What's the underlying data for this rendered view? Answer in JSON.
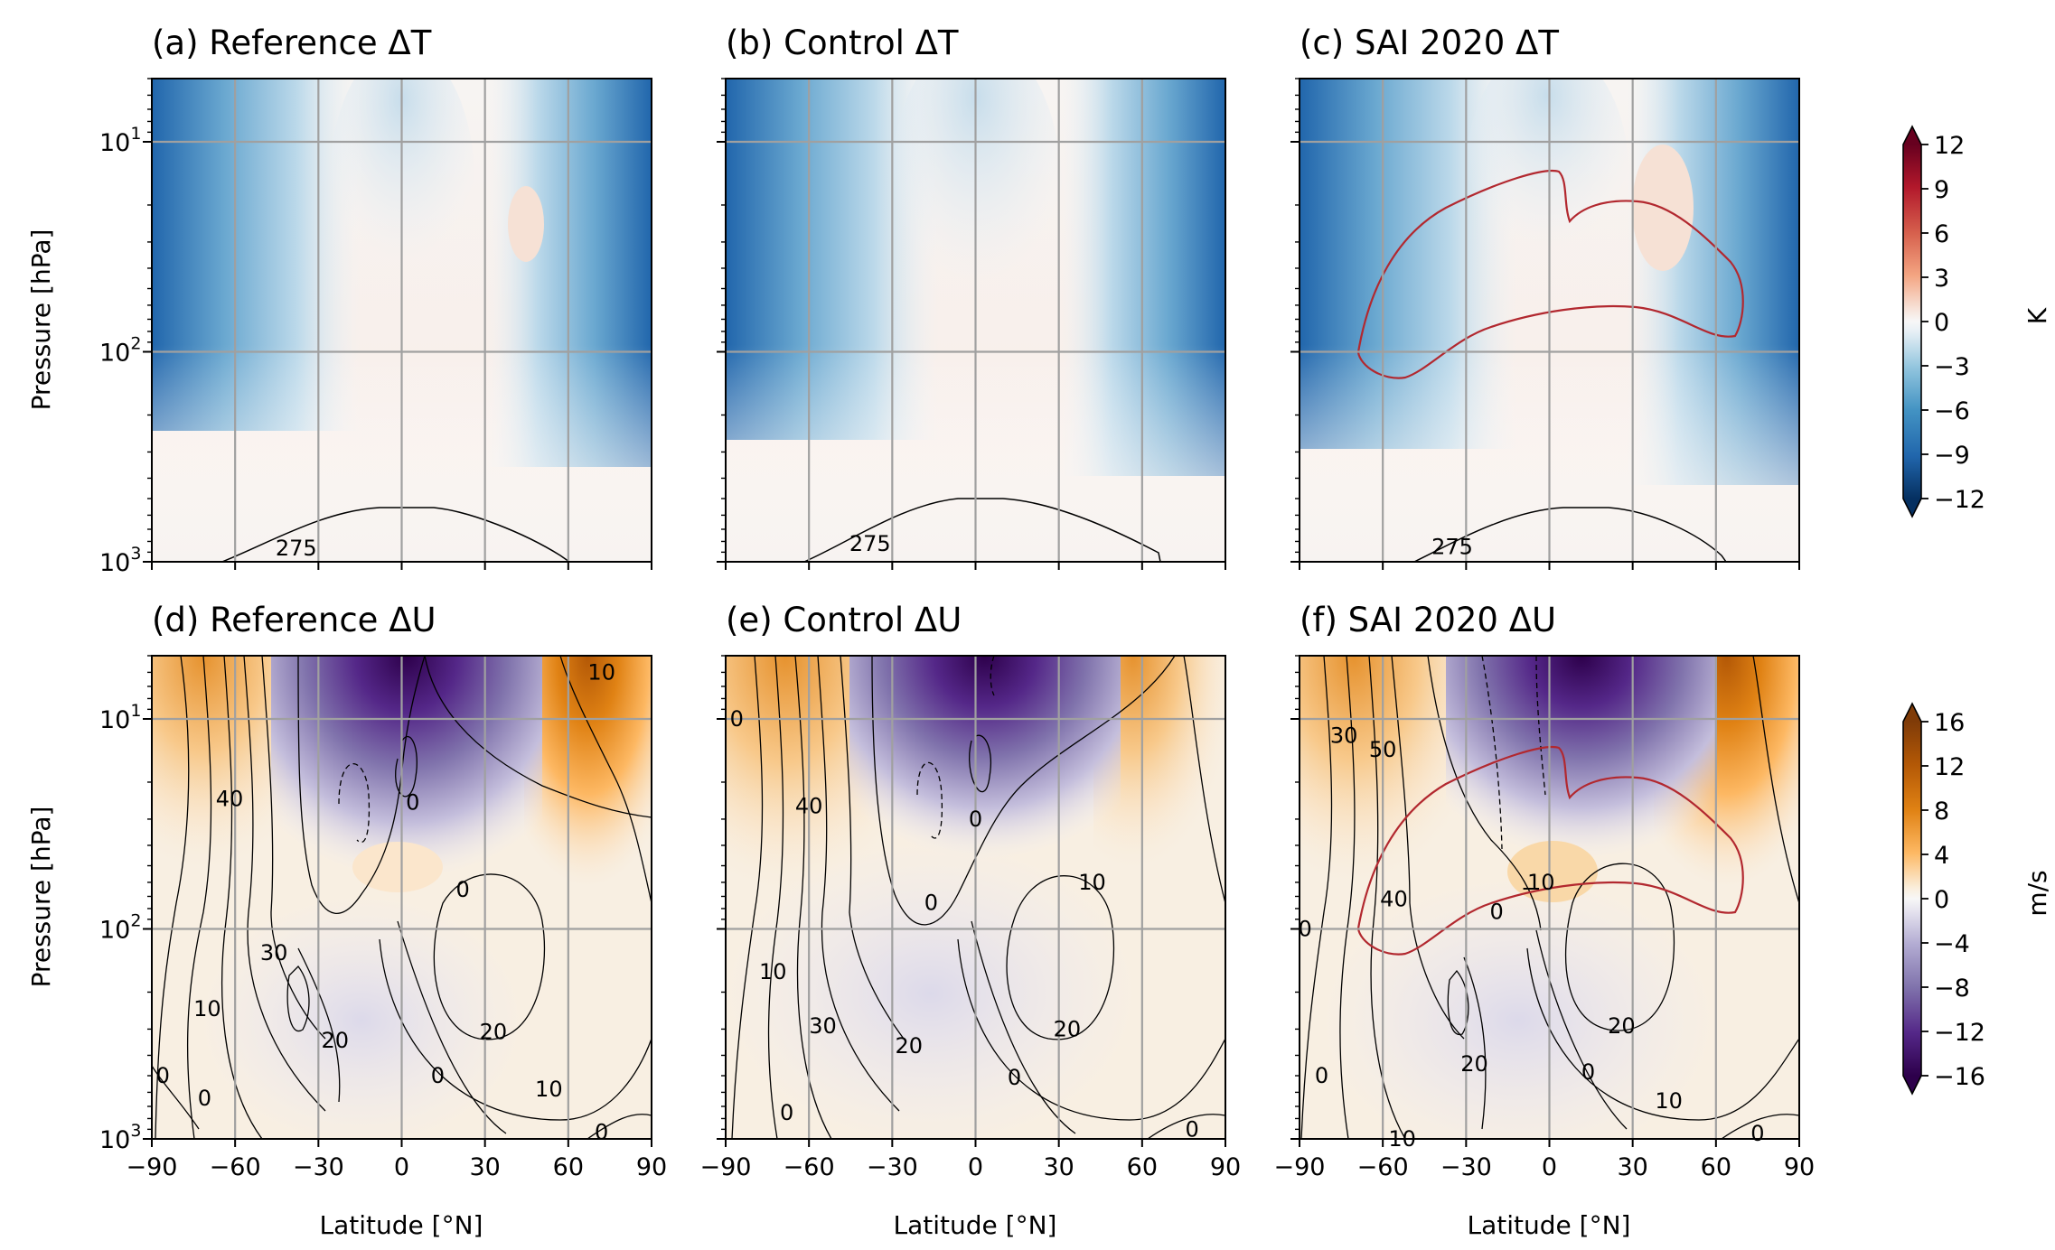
{
  "chart_data": [
    {
      "type": "heatmap",
      "panel": "a",
      "title": "(a) Reference ΔT",
      "variable": "T",
      "ylabel": "Pressure [hPa]",
      "xlabel": "",
      "xlim": [
        -90,
        90
      ],
      "ylim_hpa": [
        1000,
        5
      ],
      "y_scale": "log",
      "grid": true,
      "contour_labels": [
        {
          "text": "275",
          "lat": -38,
          "p": 860
        }
      ]
    },
    {
      "type": "heatmap",
      "panel": "b",
      "title": "(b) Control ΔT",
      "variable": "T",
      "ylabel": "",
      "xlabel": "",
      "xlim": [
        -90,
        90
      ],
      "ylim_hpa": [
        1000,
        5
      ],
      "y_scale": "log",
      "grid": true,
      "contour_labels": [
        {
          "text": "275",
          "lat": -38,
          "p": 820
        }
      ]
    },
    {
      "type": "heatmap",
      "panel": "c",
      "title": "(c) SAI 2020 ΔT",
      "variable": "T",
      "ylabel": "",
      "xlabel": "",
      "xlim": [
        -90,
        90
      ],
      "ylim_hpa": [
        1000,
        5
      ],
      "y_scale": "log",
      "grid": true,
      "contour_labels": [
        {
          "text": "275",
          "lat": -35,
          "p": 850
        }
      ]
    },
    {
      "type": "heatmap",
      "panel": "d",
      "title": "(d) Reference ΔU",
      "variable": "U",
      "ylabel": "Pressure [hPa]",
      "xlabel": "Latitude [°N]",
      "xlim": [
        -90,
        90
      ],
      "ylim_hpa": [
        1000,
        5
      ],
      "y_scale": "log",
      "grid": true,
      "contour_labels": [
        {
          "text": "10",
          "lat": 72,
          "p": 6
        },
        {
          "text": "40",
          "lat": -62,
          "p": 24
        },
        {
          "text": "0",
          "lat": 4,
          "p": 25
        },
        {
          "text": "0",
          "lat": 22,
          "p": 65
        },
        {
          "text": "30",
          "lat": -46,
          "p": 130
        },
        {
          "text": "10",
          "lat": -70,
          "p": 240
        },
        {
          "text": "20",
          "lat": -24,
          "p": 340
        },
        {
          "text": "20",
          "lat": 33,
          "p": 310
        },
        {
          "text": "0",
          "lat": 13,
          "p": 500
        },
        {
          "text": "10",
          "lat": 53,
          "p": 580
        },
        {
          "text": "0",
          "lat": -86,
          "p": 500
        },
        {
          "text": "0",
          "lat": -71,
          "p": 640
        },
        {
          "text": "0",
          "lat": 72,
          "p": 930
        }
      ]
    },
    {
      "type": "heatmap",
      "panel": "e",
      "title": "(e) Control ΔU",
      "variable": "U",
      "ylabel": "",
      "xlabel": "Latitude [°N]",
      "xlim": [
        -90,
        90
      ],
      "ylim_hpa": [
        1000,
        5
      ],
      "y_scale": "log",
      "grid": true,
      "contour_labels": [
        {
          "text": "0",
          "lat": -86,
          "p": 10
        },
        {
          "text": "40",
          "lat": -60,
          "p": 26
        },
        {
          "text": "0",
          "lat": 0,
          "p": 30
        },
        {
          "text": "0",
          "lat": -16,
          "p": 75
        },
        {
          "text": "10",
          "lat": 42,
          "p": 60
        },
        {
          "text": "10",
          "lat": -73,
          "p": 160
        },
        {
          "text": "30",
          "lat": -55,
          "p": 290
        },
        {
          "text": "20",
          "lat": -24,
          "p": 360
        },
        {
          "text": "20",
          "lat": 33,
          "p": 300
        },
        {
          "text": "0",
          "lat": 14,
          "p": 510
        },
        {
          "text": "0",
          "lat": -68,
          "p": 750
        },
        {
          "text": "0",
          "lat": 78,
          "p": 900
        }
      ]
    },
    {
      "type": "heatmap",
      "panel": "f",
      "title": "(f) SAI 2020 ΔU",
      "variable": "U",
      "ylabel": "",
      "xlabel": "Latitude [°N]",
      "xlim": [
        -90,
        90
      ],
      "ylim_hpa": [
        1000,
        5
      ],
      "y_scale": "log",
      "grid": true,
      "contour_labels": [
        {
          "text": "30",
          "lat": -74,
          "p": 12
        },
        {
          "text": "50",
          "lat": -60,
          "p": 14
        },
        {
          "text": "40",
          "lat": -56,
          "p": 72
        },
        {
          "text": "0",
          "lat": -19,
          "p": 83
        },
        {
          "text": "10",
          "lat": -3,
          "p": 60
        },
        {
          "text": "−",
          "lat": -7,
          "p": 64
        },
        {
          "text": "0",
          "lat": -88,
          "p": 100
        },
        {
          "text": "20",
          "lat": -27,
          "p": 440
        },
        {
          "text": "20",
          "lat": 26,
          "p": 290
        },
        {
          "text": "0",
          "lat": 14,
          "p": 480
        },
        {
          "text": "10",
          "lat": 43,
          "p": 660
        },
        {
          "text": "0",
          "lat": -82,
          "p": 500
        },
        {
          "text": "10",
          "lat": -53,
          "p": 1000
        },
        {
          "text": "0",
          "lat": 75,
          "p": 940
        }
      ]
    }
  ],
  "x_ticks": [
    "−90",
    "−60",
    "−30",
    "0",
    "30",
    "60",
    "90"
  ],
  "y_ticks": [
    {
      "base": "10",
      "exp": "1"
    },
    {
      "base": "10",
      "exp": "2"
    },
    {
      "base": "10",
      "exp": "3"
    }
  ],
  "colorbars": [
    {
      "variable": "T",
      "cmap": "RdBu_r",
      "range": [
        -12,
        12
      ],
      "unit": "K",
      "tick_labels": [
        "12",
        "9",
        "6",
        "3",
        "0",
        "−3",
        "−6",
        "−9",
        "−12"
      ],
      "extend": "both"
    },
    {
      "variable": "U",
      "cmap": "PuOr_r",
      "range": [
        -16,
        16
      ],
      "unit": "m/s",
      "tick_labels": [
        "16",
        "12",
        "8",
        "4",
        "0",
        "−4",
        "−8",
        "−12",
        "−16"
      ],
      "extend": "both"
    }
  ],
  "colors": {
    "grid": "#a0a0a0",
    "sai_contour": "#b2282f",
    "contour": "#000000"
  }
}
